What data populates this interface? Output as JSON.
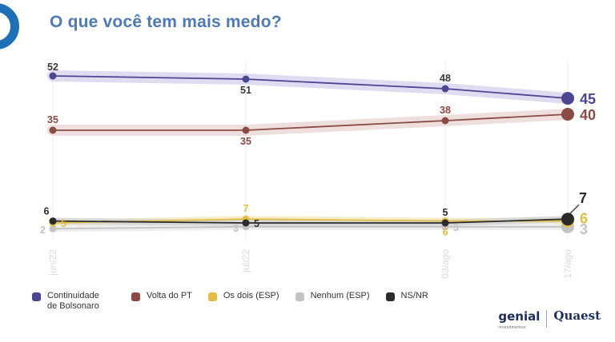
{
  "title": "O que você tem mais medo?",
  "chart_data": {
    "type": "line",
    "title": "O que você tem mais medo?",
    "categories": [
      "jun/22",
      "jul/22",
      "03/ago",
      "17/ago"
    ],
    "ylim": [
      0,
      60
    ],
    "grid": "vertical",
    "legend_position": "bottom",
    "series": [
      {
        "name": "Continuidade de Bolsonaro",
        "values": [
          52,
          51,
          48,
          45
        ],
        "labels": [
          "52",
          "51",
          "48",
          "45"
        ],
        "color": "#4b4592",
        "band": "#dcd8ef",
        "label_color": "#3a3a3a",
        "end_label_color": "#4b4592",
        "label_pos": [
          "above",
          "below",
          "above",
          "end"
        ]
      },
      {
        "name": "Volta do PT",
        "values": [
          35,
          35,
          38,
          40
        ],
        "labels": [
          "35",
          "35",
          "38",
          "40"
        ],
        "color": "#8b4a44",
        "band": "#ecdcda",
        "label_color": "#8b4a44",
        "end_label_color": "#8b4a44",
        "label_pos": [
          "above",
          "below",
          "above",
          "end"
        ]
      },
      {
        "name": "Os dois (ESP)",
        "values": [
          5,
          7,
          6,
          6
        ],
        "labels": [
          "5",
          "7",
          "6",
          "6"
        ],
        "color": "#e1bd45",
        "band": "#f5ebc2",
        "label_color": "#e1bd45",
        "end_label_color": "#e1bd45",
        "label_pos": [
          "right",
          "above",
          "below",
          "end"
        ]
      },
      {
        "name": "Nenhum (ESP)",
        "values": [
          2,
          3,
          3,
          3
        ],
        "labels": [
          "2",
          "3",
          "3",
          "3"
        ],
        "color": "#c3c3c3",
        "band": "#ececec",
        "label_color": "#c3c3c3",
        "end_label_color": "#c3c3c3",
        "label_pos": [
          "left",
          "left",
          "right",
          "end"
        ]
      },
      {
        "name": "NS/NR",
        "values": [
          6,
          5,
          5,
          7
        ],
        "labels": [
          "6",
          "5",
          "5",
          "7"
        ],
        "color": "#2b2b2b",
        "band": "#d5d5d5",
        "label_color": "#2b2b2b",
        "end_label_color": "#2b2b2b",
        "label_pos": [
          "above",
          "right",
          "above",
          "end"
        ]
      }
    ]
  },
  "legend": [
    {
      "label": "Continuidade de Bolsonaro",
      "color": "#4b4592"
    },
    {
      "label": "Volta do PT",
      "color": "#8b4a44"
    },
    {
      "label": "Os dois (ESP)",
      "color": "#e1bd45"
    },
    {
      "label": "Nenhum (ESP)",
      "color": "#c3c3c3"
    },
    {
      "label": "NS/NR",
      "color": "#2b2b2b"
    }
  ],
  "brands": {
    "genial": "genial",
    "genial_sub": "investimentos",
    "quaest": "Quaest"
  }
}
